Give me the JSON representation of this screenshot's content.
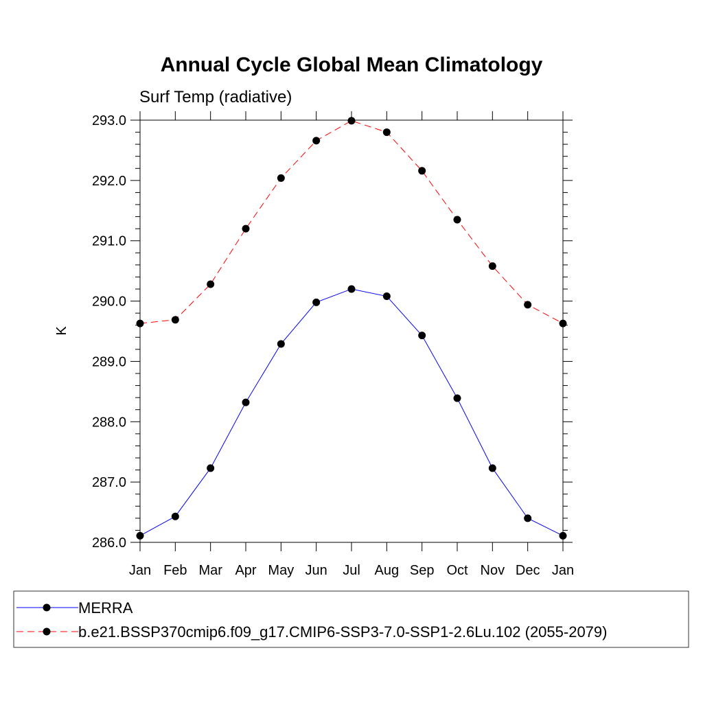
{
  "chart_data": {
    "type": "line",
    "title": "Annual Cycle Global Mean Climatology",
    "subtitle": "Surf Temp (radiative)",
    "xlabel": "",
    "ylabel": "K",
    "categories": [
      "Jan",
      "Feb",
      "Mar",
      "Apr",
      "May",
      "Jun",
      "Jul",
      "Aug",
      "Sep",
      "Oct",
      "Nov",
      "Dec",
      "Jan"
    ],
    "ylim": [
      286.0,
      293.0
    ],
    "yticks": [
      "286.0",
      "287.0",
      "288.0",
      "289.0",
      "290.0",
      "291.0",
      "292.0",
      "293.0"
    ],
    "series": [
      {
        "name": "MERRA",
        "color": "#0000ff",
        "dash": "solid",
        "values": [
          286.11,
          286.43,
          287.23,
          288.32,
          289.29,
          289.98,
          290.2,
          290.08,
          289.43,
          288.39,
          287.23,
          286.4,
          286.11
        ]
      },
      {
        "name": "b.e21.BSSP370cmip6.f09_g17.CMIP6-SSP3-7.0-SSP1-2.6Lu.102 (2055-2079)",
        "color": "#ff0000",
        "dash": "dashed",
        "values": [
          289.63,
          289.69,
          290.28,
          291.2,
          292.04,
          292.66,
          292.99,
          292.8,
          292.16,
          291.35,
          290.58,
          289.94,
          289.63
        ]
      }
    ],
    "grid": false,
    "legend_position": "bottom"
  }
}
